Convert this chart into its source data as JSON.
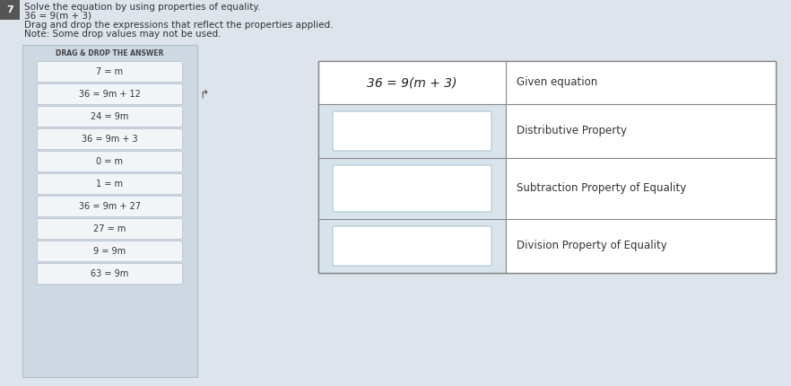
{
  "page_bg": "#dde4ec",
  "title_number": "7",
  "title_number_bg": "#555555",
  "line1": "Solve the equation by using properties of equality.",
  "line2": "36 = 9(m + 3)",
  "line3": "Drag and drop the expressions that reflect the properties applied.",
  "line4": "Note: Some drop values may not be used.",
  "drag_drop_label": "DRAG & DROP THE ANSWER",
  "drag_items": [
    "7 = m",
    "36 = 9m + 12",
    "24 = 9m",
    "36 = 9m + 3",
    "0 = m",
    "1 = m",
    "36 = 9m + 27",
    "27 = m",
    "9 = 9m",
    "63 = 9m"
  ],
  "table_rows": [
    [
      "36 = 9(m + 3)",
      "Given equation"
    ],
    [
      "",
      "Distributive Property"
    ],
    [
      "",
      "Subtraction Property of Equality"
    ],
    [
      "",
      "Division Property of Equality"
    ]
  ],
  "panel_bg": "#cdd8e3",
  "panel_border": "#b0bfcc",
  "card_bg": "#f2f5f8",
  "card_border": "#c0cad4",
  "table_bg": "white",
  "table_border": "#888888",
  "drop_box_bg": "#d8e4ec",
  "drop_box_border": "#b0c4d0",
  "right_col_bg": "white"
}
